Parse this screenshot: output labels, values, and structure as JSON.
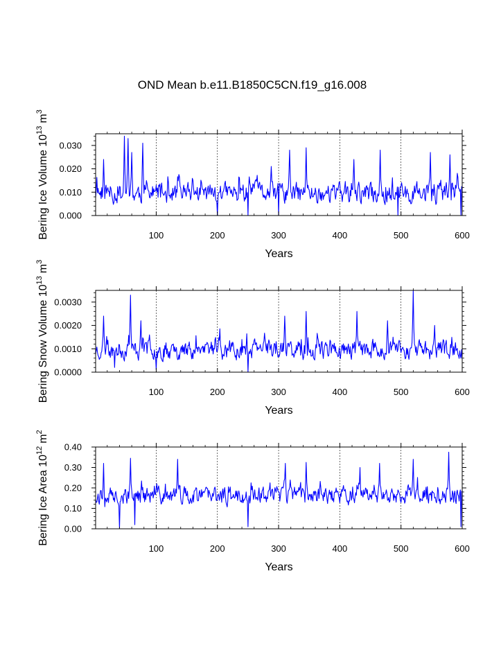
{
  "figure": {
    "title": "OND Mean b.e11.B1850C5CN.f19_g16.008",
    "line_color": "#0000ff"
  },
  "chart_data": [
    {
      "type": "line",
      "ylabel_text": "Bering Ice Volume 10",
      "ylabel_exp": "13",
      "ylabel_unit": "m",
      "ylabel_unit_exp": "3",
      "xlabel": "Years",
      "xlim": [
        1,
        600
      ],
      "ylim": [
        0.0,
        0.035
      ],
      "xticks": [
        100,
        200,
        300,
        400,
        500,
        600
      ],
      "xtick_labels": [
        "100",
        "200",
        "300",
        "400",
        "500",
        "600"
      ],
      "yticks": [
        0.0,
        0.01,
        0.02,
        0.03
      ],
      "ytick_labels": [
        "0.000",
        "0.010",
        "0.020",
        "0.030"
      ],
      "ygen": {
        "seed": 11,
        "base": 0.0095,
        "amp": 0.0065,
        "clip": [
          0.0,
          0.035
        ]
      },
      "peaks": [
        [
          48,
          0.034
        ],
        [
          54,
          0.033
        ],
        [
          60,
          0.027
        ],
        [
          78,
          0.031
        ],
        [
          14,
          0.024
        ],
        [
          318,
          0.028
        ],
        [
          345,
          0.029
        ],
        [
          466,
          0.028
        ],
        [
          548,
          0.027
        ],
        [
          580,
          0.026
        ],
        [
          423,
          0.024
        ],
        [
          288,
          0.021
        ]
      ],
      "troughs": [
        [
          200,
          0.0
        ],
        [
          250,
          0.0
        ],
        [
          300,
          0.0
        ],
        [
          495,
          0.0
        ],
        [
          598,
          0.0
        ]
      ]
    },
    {
      "type": "line",
      "ylabel_text": "Bering Snow Volume 10",
      "ylabel_exp": "13",
      "ylabel_unit": "m",
      "ylabel_unit_exp": "3",
      "xlabel": "Years",
      "xlim": [
        1,
        600
      ],
      "ylim": [
        0.0,
        0.0035
      ],
      "xticks": [
        100,
        200,
        300,
        400,
        500,
        600
      ],
      "xtick_labels": [
        "100",
        "200",
        "300",
        "400",
        "500",
        "600"
      ],
      "yticks": [
        0.0,
        0.001,
        0.002,
        0.003
      ],
      "ytick_labels": [
        "0.0000",
        "0.0010",
        "0.0020",
        "0.0030"
      ],
      "ygen": {
        "seed": 23,
        "base": 0.00095,
        "amp": 0.0006,
        "clip": [
          0.0,
          0.0035
        ]
      },
      "peaks": [
        [
          58,
          0.0033
        ],
        [
          14,
          0.0024
        ],
        [
          75,
          0.0022
        ],
        [
          310,
          0.0024
        ],
        [
          345,
          0.0026
        ],
        [
          428,
          0.0026
        ],
        [
          520,
          0.0035
        ],
        [
          478,
          0.0022
        ],
        [
          555,
          0.002
        ]
      ],
      "troughs": [
        [
          250,
          0.0
        ],
        [
          32,
          0.0002
        ],
        [
          100,
          0.0001
        ]
      ]
    },
    {
      "type": "line",
      "ylabel_text": "Bering Ice Area 10",
      "ylabel_exp": "12",
      "ylabel_unit": "m",
      "ylabel_unit_exp": "2",
      "xlabel": "Years",
      "xlim": [
        1,
        600
      ],
      "ylim": [
        0.0,
        0.4
      ],
      "xticks": [
        100,
        200,
        300,
        400,
        500,
        600
      ],
      "xtick_labels": [
        "100",
        "200",
        "300",
        "400",
        "500",
        "600"
      ],
      "yticks": [
        0.0,
        0.1,
        0.2,
        0.3,
        0.4
      ],
      "ytick_labels": [
        "0.00",
        "0.10",
        "0.20",
        "0.30",
        "0.40"
      ],
      "ygen": {
        "seed": 37,
        "base": 0.16,
        "amp": 0.065,
        "clip": [
          0.0,
          0.4
        ]
      },
      "peaks": [
        [
          58,
          0.345
        ],
        [
          135,
          0.34
        ],
        [
          14,
          0.32
        ],
        [
          311,
          0.32
        ],
        [
          345,
          0.325
        ],
        [
          465,
          0.32
        ],
        [
          520,
          0.34
        ],
        [
          578,
          0.375
        ],
        [
          433,
          0.3
        ]
      ],
      "troughs": [
        [
          250,
          0.01
        ],
        [
          598,
          0.01
        ],
        [
          40,
          0.0
        ],
        [
          65,
          0.02
        ]
      ]
    }
  ]
}
